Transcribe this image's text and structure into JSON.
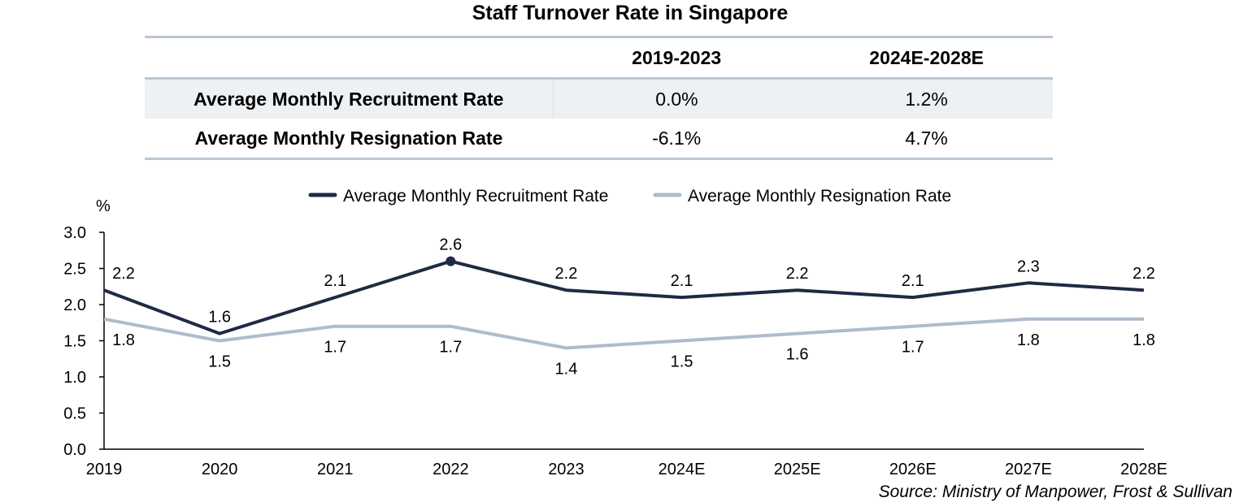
{
  "table": {
    "title": "Staff Turnover Rate in Singapore",
    "headers": [
      "",
      "2019-2023",
      "2024E-2028E"
    ],
    "rows": [
      {
        "label": "Average Monthly Recruitment Rate",
        "values": [
          "0.0%",
          "1.2%"
        ]
      },
      {
        "label": "Average Monthly Resignation Rate",
        "values": [
          "-6.1%",
          "4.7%"
        ]
      }
    ]
  },
  "chart_data": {
    "type": "line",
    "title": "",
    "ylabel": "%",
    "xlabel": "",
    "ylim": [
      0,
      3.0
    ],
    "yticks": [
      "0.0",
      "0.5",
      "1.0",
      "1.5",
      "2.0",
      "2.5",
      "3.0"
    ],
    "categories": [
      "2019",
      "2020",
      "2021",
      "2022",
      "2023",
      "2024E",
      "2025E",
      "2026E",
      "2027E",
      "2028E"
    ],
    "legend_position": "top-center",
    "series": [
      {
        "name": "Average Monthly Recruitment Rate",
        "color": "#1f2a44",
        "values": [
          2.2,
          1.6,
          2.1,
          2.6,
          2.2,
          2.1,
          2.2,
          2.1,
          2.3,
          2.2
        ],
        "labels": [
          "2.2",
          "1.6",
          "2.1",
          "2.6",
          "2.2",
          "2.1",
          "2.2",
          "2.1",
          "2.3",
          "2.2"
        ],
        "marker_index": 3
      },
      {
        "name": "Average Monthly Resignation Rate",
        "color": "#aebccb",
        "values": [
          1.8,
          1.5,
          1.7,
          1.7,
          1.4,
          1.5,
          1.6,
          1.7,
          1.8,
          1.8
        ],
        "labels": [
          "1.8",
          "1.5",
          "1.7",
          "1.7",
          "1.4",
          "1.5",
          "1.6",
          "1.7",
          "1.8",
          "1.8"
        ]
      }
    ]
  },
  "source": "Source: Ministry of Manpower, Frost & Sullivan"
}
